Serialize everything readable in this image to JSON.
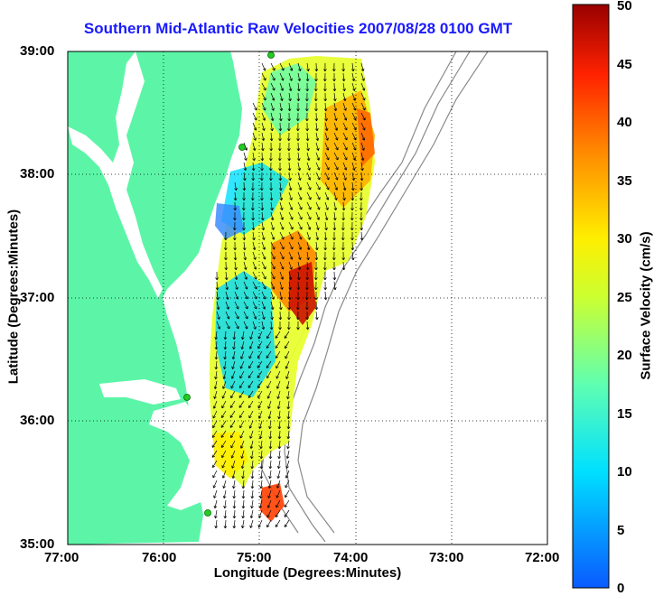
{
  "title": "Southern Mid-Atlantic Raw Velocities 2007/08/28 0100 GMT",
  "map_axes": {
    "xlabel": "Longitude (Degrees:Minutes)",
    "ylabel": "Latitude (Degrees:Minutes)",
    "x_ticks": [
      "77:00",
      "76:00",
      "75:00",
      "74:00",
      "73:00",
      "72:00"
    ],
    "y_ticks": [
      "39:00",
      "38:00",
      "37:00",
      "36:00",
      "35:00"
    ],
    "lon_range": [
      -77,
      -72
    ],
    "lat_range": [
      35,
      39
    ],
    "grid": "dotted"
  },
  "colorbar": {
    "label": "Surface Velocity (cm/s)",
    "ticks": [
      "50",
      "45",
      "40",
      "35",
      "30",
      "25",
      "20",
      "15",
      "10",
      "5",
      "0"
    ],
    "range": [
      0,
      50
    ],
    "colormap": "jet"
  },
  "colors": {
    "land": "#5cf5a8",
    "title": "#1a1aff",
    "station": "#22cc22",
    "bathymetry": "#8a8a8a"
  }
}
